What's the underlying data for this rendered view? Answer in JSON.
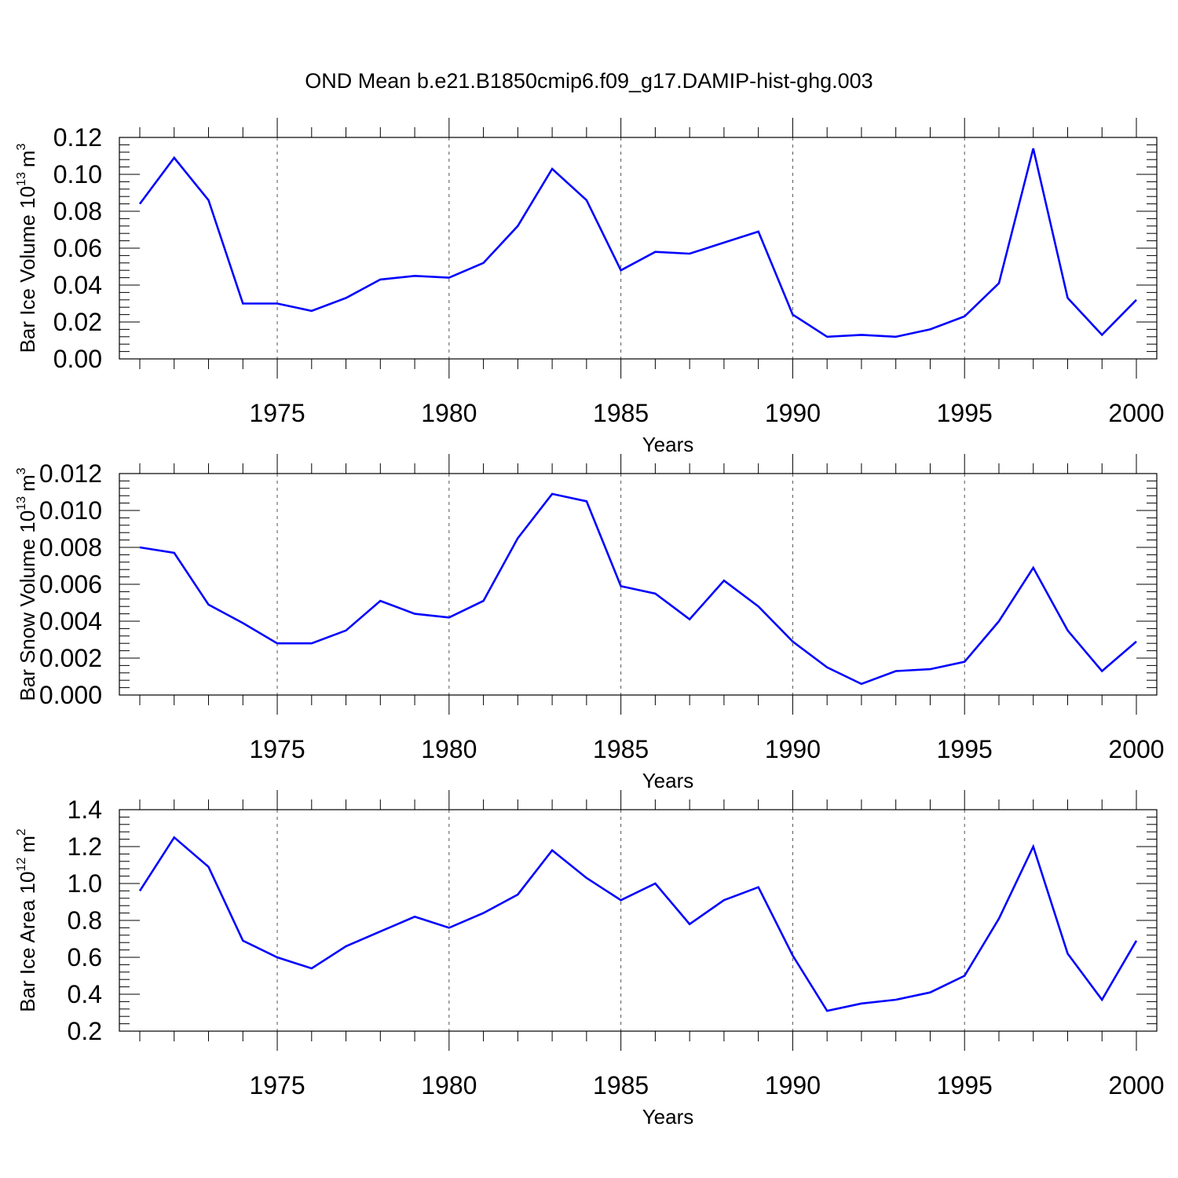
{
  "figure": {
    "title": "OND Mean b.e21.B1850cmip6.f09_g17.DAMIP-hist-ghg.003"
  },
  "chart_data": [
    {
      "type": "line",
      "title": "OND Mean b.e21.B1850cmip6.f09_g17.DAMIP-hist-ghg.003",
      "xlabel": "Years",
      "ylabel_main": "Bar Ice Volume 10",
      "ylabel_exp": "13",
      "ylabel_unit": "m",
      "ylabel_unit_exp": "3",
      "xlim": [
        1971,
        2000
      ],
      "ylim": [
        0,
        0.12
      ],
      "xticks": [
        1975,
        1980,
        1985,
        1990,
        1995,
        2000
      ],
      "yticks": [
        "0.00",
        "0.02",
        "0.04",
        "0.06",
        "0.08",
        "0.10",
        "0.12"
      ],
      "ytick_values": [
        0,
        0.02,
        0.04,
        0.06,
        0.08,
        0.1,
        0.12
      ],
      "color": "#0000ff",
      "series": [
        {
          "name": "Bar Ice Volume",
          "x": [
            1971,
            1972,
            1973,
            1974,
            1975,
            1976,
            1977,
            1978,
            1979,
            1980,
            1981,
            1982,
            1983,
            1984,
            1985,
            1986,
            1987,
            1988,
            1989,
            1990,
            1991,
            1992,
            1993,
            1994,
            1995,
            1996,
            1997,
            1998,
            1999,
            2000
          ],
          "values": [
            0.084,
            0.109,
            0.086,
            0.03,
            0.03,
            0.026,
            0.033,
            0.043,
            0.045,
            0.044,
            0.052,
            0.072,
            0.103,
            0.086,
            0.048,
            0.058,
            0.057,
            0.063,
            0.069,
            0.024,
            0.012,
            0.013,
            0.012,
            0.016,
            0.023,
            0.041,
            0.114,
            0.033,
            0.013,
            0.032
          ]
        }
      ]
    },
    {
      "type": "line",
      "xlabel": "Years",
      "ylabel_main": "Bar Snow Volume 10",
      "ylabel_exp": "13",
      "ylabel_unit": "m",
      "ylabel_unit_exp": "3",
      "xlim": [
        1971,
        2000
      ],
      "ylim": [
        0,
        0.012
      ],
      "xticks": [
        1975,
        1980,
        1985,
        1990,
        1995,
        2000
      ],
      "yticks": [
        "0.000",
        "0.002",
        "0.004",
        "0.006",
        "0.008",
        "0.010",
        "0.012"
      ],
      "ytick_values": [
        0,
        0.002,
        0.004,
        0.006,
        0.008,
        0.01,
        0.012
      ],
      "color": "#0000ff",
      "series": [
        {
          "name": "Bar Snow Volume",
          "x": [
            1971,
            1972,
            1973,
            1974,
            1975,
            1976,
            1977,
            1978,
            1979,
            1980,
            1981,
            1982,
            1983,
            1984,
            1985,
            1986,
            1987,
            1988,
            1989,
            1990,
            1991,
            1992,
            1993,
            1994,
            1995,
            1996,
            1997,
            1998,
            1999,
            2000
          ],
          "values": [
            0.008,
            0.0077,
            0.0049,
            0.0039,
            0.0028,
            0.0028,
            0.0035,
            0.0051,
            0.0044,
            0.0042,
            0.0051,
            0.0085,
            0.0109,
            0.0105,
            0.0059,
            0.0055,
            0.0041,
            0.0062,
            0.0048,
            0.0029,
            0.0015,
            0.0006,
            0.0013,
            0.0014,
            0.0018,
            0.004,
            0.0069,
            0.0035,
            0.0013,
            0.0029
          ]
        }
      ]
    },
    {
      "type": "line",
      "xlabel": "Years",
      "ylabel_main": "Bar Ice Area 10",
      "ylabel_exp": "12",
      "ylabel_unit": "m",
      "ylabel_unit_exp": "2",
      "xlim": [
        1971,
        2000
      ],
      "ylim": [
        0.2,
        1.4
      ],
      "xticks": [
        1975,
        1980,
        1985,
        1990,
        1995,
        2000
      ],
      "yticks": [
        "0.2",
        "0.4",
        "0.6",
        "0.8",
        "1.0",
        "1.2",
        "1.4"
      ],
      "ytick_values": [
        0.2,
        0.4,
        0.6,
        0.8,
        1.0,
        1.2,
        1.4
      ],
      "color": "#0000ff",
      "series": [
        {
          "name": "Bar Ice Area",
          "x": [
            1971,
            1972,
            1973,
            1974,
            1975,
            1976,
            1977,
            1978,
            1979,
            1980,
            1981,
            1982,
            1983,
            1984,
            1985,
            1986,
            1987,
            1988,
            1989,
            1990,
            1991,
            1992,
            1993,
            1994,
            1995,
            1996,
            1997,
            1998,
            1999,
            2000
          ],
          "values": [
            0.96,
            1.25,
            1.09,
            0.69,
            0.6,
            0.54,
            0.66,
            0.74,
            0.82,
            0.76,
            0.84,
            0.94,
            1.18,
            1.03,
            0.91,
            1.0,
            0.78,
            0.91,
            0.98,
            0.61,
            0.31,
            0.35,
            0.37,
            0.41,
            0.5,
            0.81,
            1.2,
            0.62,
            0.37,
            0.69
          ]
        }
      ]
    }
  ]
}
